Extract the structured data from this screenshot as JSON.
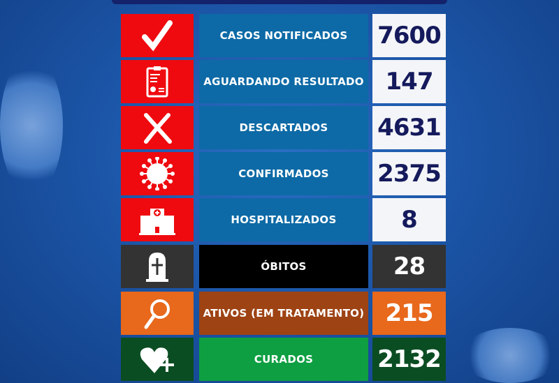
{
  "rows": [
    {
      "label": "CASOS NOTIFICADOS",
      "value": "7600",
      "icon": "check-icon",
      "icon_bg": "#ee0a0f",
      "label_bg": "#0d6aa6",
      "value_bg": "#f4f5f8",
      "value_color": "#151a5c"
    },
    {
      "label": "AGUARDANDO RESULTADO",
      "value": "147",
      "icon": "clipboard-report-icon",
      "icon_bg": "#ee0a0f",
      "label_bg": "#0d6aa6",
      "value_bg": "#f4f5f8",
      "value_color": "#151a5c"
    },
    {
      "label": "DESCARTADOS",
      "value": "4631",
      "icon": "x-mark-icon",
      "icon_bg": "#ee0a0f",
      "label_bg": "#0d6aa6",
      "value_bg": "#f4f5f8",
      "value_color": "#151a5c"
    },
    {
      "label": "CONFIRMADOS",
      "value": "2375",
      "icon": "virus-icon",
      "icon_bg": "#ee0a0f",
      "label_bg": "#0d6aa6",
      "value_bg": "#f4f5f8",
      "value_color": "#151a5c"
    },
    {
      "label": "HOSPITALIZADOS",
      "value": "8",
      "icon": "hospital-icon",
      "icon_bg": "#ee0a0f",
      "label_bg": "#0d6aa6",
      "value_bg": "#f4f5f8",
      "value_color": "#151a5c"
    },
    {
      "label": "ÓBITOS",
      "value": "28",
      "icon": "tombstone-icon",
      "icon_bg": "#333333",
      "label_bg": "#000000",
      "value_bg": "#333333",
      "value_color": "#ffffff"
    },
    {
      "label": "ATIVOS (EM TRATAMENTO)",
      "value": "215",
      "icon": "magnifier-icon",
      "icon_bg": "#e8681c",
      "label_bg": "#9e4314",
      "value_bg": "#e8681c",
      "value_color": "#ffffff"
    },
    {
      "label": "CURADOS",
      "value": "2132",
      "icon": "heart-plus-icon",
      "icon_bg": "#0b4d22",
      "label_bg": "#0e9f42",
      "value_bg": "#0b4d22",
      "value_color": "#ffffff"
    }
  ]
}
